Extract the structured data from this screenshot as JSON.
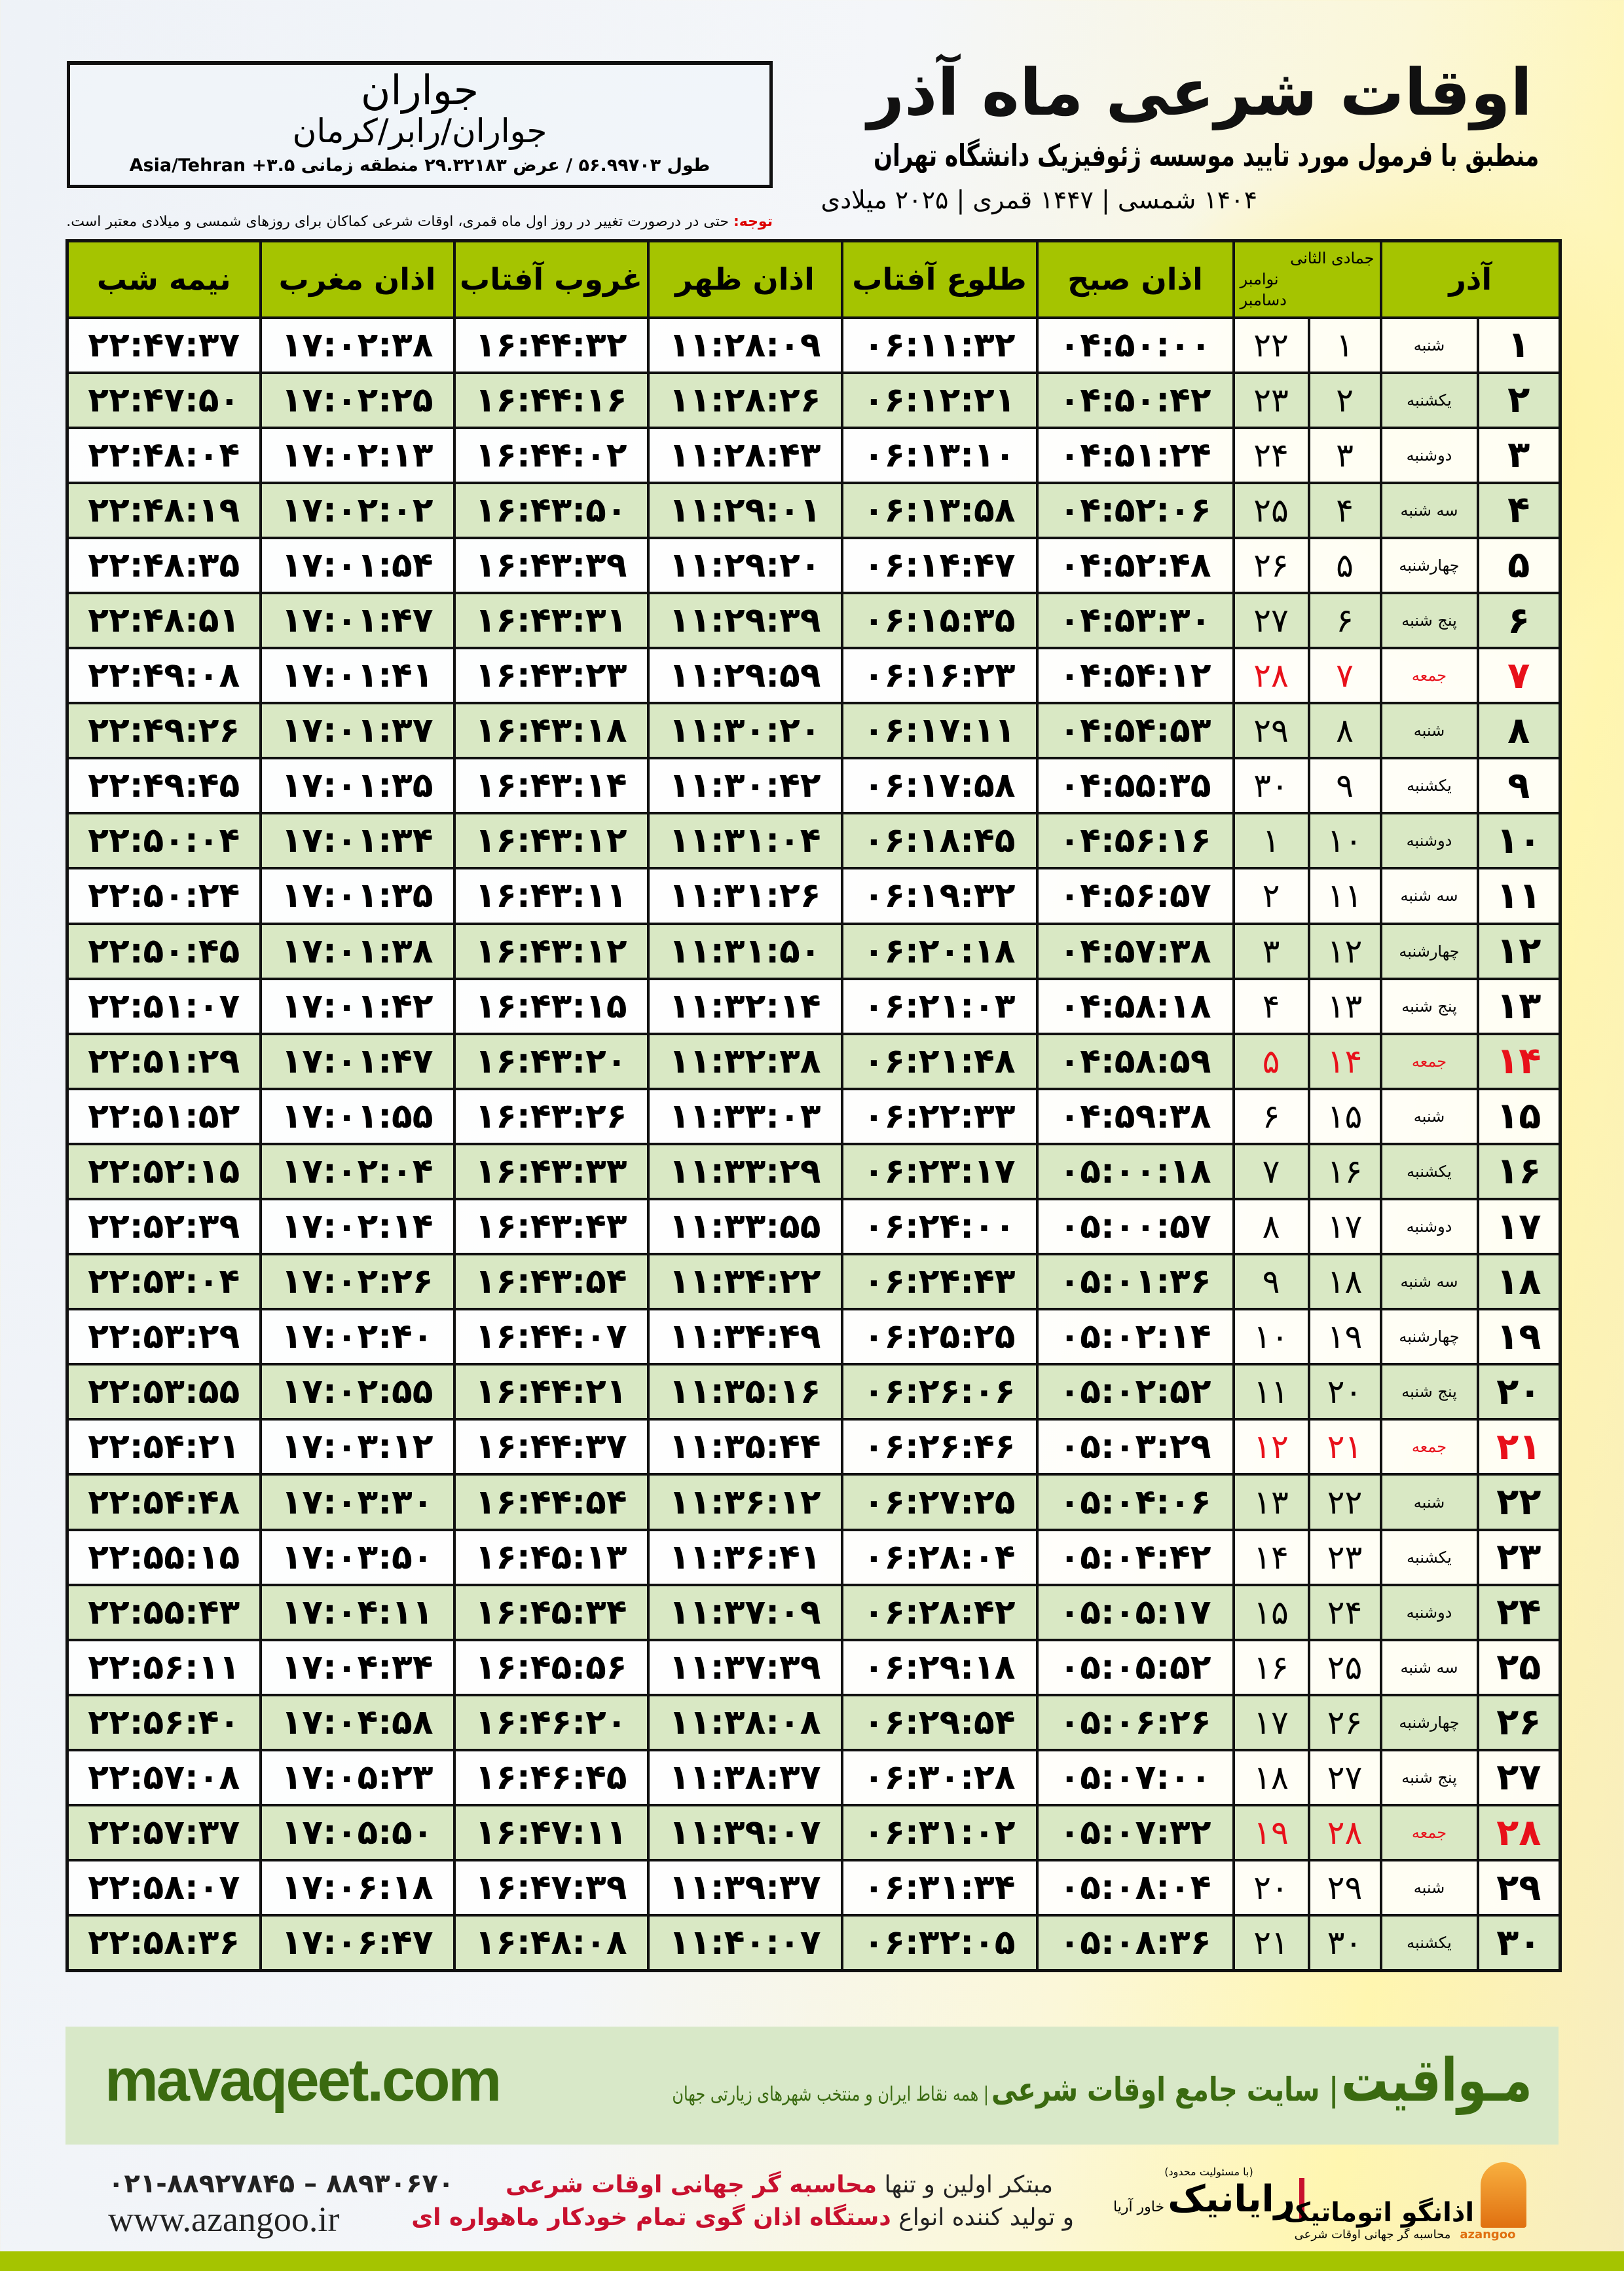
{
  "header": {
    "title": "اوقات شرعی ماه آذر",
    "subtitle": "منطبق با فرمول مورد تایید موسسه ژئوفیزیک دانشگاه تهران",
    "dates": "۱۴۰۴ شمسی | ۱۴۴۷ قمری | ۲۰۲۵ میلادی",
    "note_label": "توجه:",
    "note": " حتی در درصورت تغییر در روز اول ماه قمری، اوقات شرعی کماکان برای روزهای شمسی و میلادی معتبر است."
  },
  "location": {
    "city": "جواران",
    "region": "جواران/رابر/کرمان",
    "coords": "طول ۵۶.۹۹۷۰۳ / عرض ۲۹.۳۲۱۸۳ منطقه زمانی ۳.۵+ Asia/Tehran"
  },
  "columns": {
    "azar": "آذر",
    "jumada": "جمادی الثانی",
    "nov": "نوامبر",
    "dec": "دسامبر",
    "sobh": "اذان صبح",
    "tolu": "طلوع آفتاب",
    "zohr": "اذان ظهر",
    "ghorub": "غروب آفتاب",
    "maghrib": "اذان مغرب",
    "nimeh": "نیمه شب"
  },
  "colors": {
    "header_green": "#a5c400",
    "row_alt": "#d9e8c4",
    "friday": "#e8101a"
  },
  "rows": [
    [
      "۱",
      "شنبه",
      "۱",
      "۲۲",
      "۰۴:۵۰:۰۰",
      "۰۶:۱۱:۳۲",
      "۱۱:۲۸:۰۹",
      "۱۶:۴۴:۳۲",
      "۱۷:۰۲:۳۸",
      "۲۲:۴۷:۳۷"
    ],
    [
      "۲",
      "یکشنبه",
      "۲",
      "۲۳",
      "۰۴:۵۰:۴۲",
      "۰۶:۱۲:۲۱",
      "۱۱:۲۸:۲۶",
      "۱۶:۴۴:۱۶",
      "۱۷:۰۲:۲۵",
      "۲۲:۴۷:۵۰"
    ],
    [
      "۳",
      "دوشنبه",
      "۳",
      "۲۴",
      "۰۴:۵۱:۲۴",
      "۰۶:۱۳:۱۰",
      "۱۱:۲۸:۴۳",
      "۱۶:۴۴:۰۲",
      "۱۷:۰۲:۱۳",
      "۲۲:۴۸:۰۴"
    ],
    [
      "۴",
      "سه شنبه",
      "۴",
      "۲۵",
      "۰۴:۵۲:۰۶",
      "۰۶:۱۳:۵۸",
      "۱۱:۲۹:۰۱",
      "۱۶:۴۳:۵۰",
      "۱۷:۰۲:۰۲",
      "۲۲:۴۸:۱۹"
    ],
    [
      "۵",
      "چهارشنبه",
      "۵",
      "۲۶",
      "۰۴:۵۲:۴۸",
      "۰۶:۱۴:۴۷",
      "۱۱:۲۹:۲۰",
      "۱۶:۴۳:۳۹",
      "۱۷:۰۱:۵۴",
      "۲۲:۴۸:۳۵"
    ],
    [
      "۶",
      "پنج شنبه",
      "۶",
      "۲۷",
      "۰۴:۵۳:۳۰",
      "۰۶:۱۵:۳۵",
      "۱۱:۲۹:۳۹",
      "۱۶:۴۳:۳۱",
      "۱۷:۰۱:۴۷",
      "۲۲:۴۸:۵۱"
    ],
    [
      "۷",
      "جمعه",
      "۷",
      "۲۸",
      "۰۴:۵۴:۱۲",
      "۰۶:۱۶:۲۳",
      "۱۱:۲۹:۵۹",
      "۱۶:۴۳:۲۳",
      "۱۷:۰۱:۴۱",
      "۲۲:۴۹:۰۸"
    ],
    [
      "۸",
      "شنبه",
      "۸",
      "۲۹",
      "۰۴:۵۴:۵۳",
      "۰۶:۱۷:۱۱",
      "۱۱:۳۰:۲۰",
      "۱۶:۴۳:۱۸",
      "۱۷:۰۱:۳۷",
      "۲۲:۴۹:۲۶"
    ],
    [
      "۹",
      "یکشنبه",
      "۹",
      "۳۰",
      "۰۴:۵۵:۳۵",
      "۰۶:۱۷:۵۸",
      "۱۱:۳۰:۴۲",
      "۱۶:۴۳:۱۴",
      "۱۷:۰۱:۳۵",
      "۲۲:۴۹:۴۵"
    ],
    [
      "۱۰",
      "دوشنبه",
      "۱۰",
      "۱",
      "۰۴:۵۶:۱۶",
      "۰۶:۱۸:۴۵",
      "۱۱:۳۱:۰۴",
      "۱۶:۴۳:۱۲",
      "۱۷:۰۱:۳۴",
      "۲۲:۵۰:۰۴"
    ],
    [
      "۱۱",
      "سه شنبه",
      "۱۱",
      "۲",
      "۰۴:۵۶:۵۷",
      "۰۶:۱۹:۳۲",
      "۱۱:۳۱:۲۶",
      "۱۶:۴۳:۱۱",
      "۱۷:۰۱:۳۵",
      "۲۲:۵۰:۲۴"
    ],
    [
      "۱۲",
      "چهارشنبه",
      "۱۲",
      "۳",
      "۰۴:۵۷:۳۸",
      "۰۶:۲۰:۱۸",
      "۱۱:۳۱:۵۰",
      "۱۶:۴۳:۱۲",
      "۱۷:۰۱:۳۸",
      "۲۲:۵۰:۴۵"
    ],
    [
      "۱۳",
      "پنج شنبه",
      "۱۳",
      "۴",
      "۰۴:۵۸:۱۸",
      "۰۶:۲۱:۰۳",
      "۱۱:۳۲:۱۴",
      "۱۶:۴۳:۱۵",
      "۱۷:۰۱:۴۲",
      "۲۲:۵۱:۰۷"
    ],
    [
      "۱۴",
      "جمعه",
      "۱۴",
      "۵",
      "۰۴:۵۸:۵۹",
      "۰۶:۲۱:۴۸",
      "۱۱:۳۲:۳۸",
      "۱۶:۴۳:۲۰",
      "۱۷:۰۱:۴۷",
      "۲۲:۵۱:۲۹"
    ],
    [
      "۱۵",
      "شنبه",
      "۱۵",
      "۶",
      "۰۴:۵۹:۳۸",
      "۰۶:۲۲:۳۳",
      "۱۱:۳۳:۰۳",
      "۱۶:۴۳:۲۶",
      "۱۷:۰۱:۵۵",
      "۲۲:۵۱:۵۲"
    ],
    [
      "۱۶",
      "یکشنبه",
      "۱۶",
      "۷",
      "۰۵:۰۰:۱۸",
      "۰۶:۲۳:۱۷",
      "۱۱:۳۳:۲۹",
      "۱۶:۴۳:۳۳",
      "۱۷:۰۲:۰۴",
      "۲۲:۵۲:۱۵"
    ],
    [
      "۱۷",
      "دوشنبه",
      "۱۷",
      "۸",
      "۰۵:۰۰:۵۷",
      "۰۶:۲۴:۰۰",
      "۱۱:۳۳:۵۵",
      "۱۶:۴۳:۴۳",
      "۱۷:۰۲:۱۴",
      "۲۲:۵۲:۳۹"
    ],
    [
      "۱۸",
      "سه شنبه",
      "۱۸",
      "۹",
      "۰۵:۰۱:۳۶",
      "۰۶:۲۴:۴۳",
      "۱۱:۳۴:۲۲",
      "۱۶:۴۳:۵۴",
      "۱۷:۰۲:۲۶",
      "۲۲:۵۳:۰۴"
    ],
    [
      "۱۹",
      "چهارشنبه",
      "۱۹",
      "۱۰",
      "۰۵:۰۲:۱۴",
      "۰۶:۲۵:۲۵",
      "۱۱:۳۴:۴۹",
      "۱۶:۴۴:۰۷",
      "۱۷:۰۲:۴۰",
      "۲۲:۵۳:۲۹"
    ],
    [
      "۲۰",
      "پنج شنبه",
      "۲۰",
      "۱۱",
      "۰۵:۰۲:۵۲",
      "۰۶:۲۶:۰۶",
      "۱۱:۳۵:۱۶",
      "۱۶:۴۴:۲۱",
      "۱۷:۰۲:۵۵",
      "۲۲:۵۳:۵۵"
    ],
    [
      "۲۱",
      "جمعه",
      "۲۱",
      "۱۲",
      "۰۵:۰۳:۲۹",
      "۰۶:۲۶:۴۶",
      "۱۱:۳۵:۴۴",
      "۱۶:۴۴:۳۷",
      "۱۷:۰۳:۱۲",
      "۲۲:۵۴:۲۱"
    ],
    [
      "۲۲",
      "شنبه",
      "۲۲",
      "۱۳",
      "۰۵:۰۴:۰۶",
      "۰۶:۲۷:۲۵",
      "۱۱:۳۶:۱۲",
      "۱۶:۴۴:۵۴",
      "۱۷:۰۳:۳۰",
      "۲۲:۵۴:۴۸"
    ],
    [
      "۲۳",
      "یکشنبه",
      "۲۳",
      "۱۴",
      "۰۵:۰۴:۴۲",
      "۰۶:۲۸:۰۴",
      "۱۱:۳۶:۴۱",
      "۱۶:۴۵:۱۳",
      "۱۷:۰۳:۵۰",
      "۲۲:۵۵:۱۵"
    ],
    [
      "۲۴",
      "دوشنبه",
      "۲۴",
      "۱۵",
      "۰۵:۰۵:۱۷",
      "۰۶:۲۸:۴۲",
      "۱۱:۳۷:۰۹",
      "۱۶:۴۵:۳۴",
      "۱۷:۰۴:۱۱",
      "۲۲:۵۵:۴۳"
    ],
    [
      "۲۵",
      "سه شنبه",
      "۲۵",
      "۱۶",
      "۰۵:۰۵:۵۲",
      "۰۶:۲۹:۱۸",
      "۱۱:۳۷:۳۹",
      "۱۶:۴۵:۵۶",
      "۱۷:۰۴:۳۴",
      "۲۲:۵۶:۱۱"
    ],
    [
      "۲۶",
      "چهارشنبه",
      "۲۶",
      "۱۷",
      "۰۵:۰۶:۲۶",
      "۰۶:۲۹:۵۴",
      "۱۱:۳۸:۰۸",
      "۱۶:۴۶:۲۰",
      "۱۷:۰۴:۵۸",
      "۲۲:۵۶:۴۰"
    ],
    [
      "۲۷",
      "پنج شنبه",
      "۲۷",
      "۱۸",
      "۰۵:۰۷:۰۰",
      "۰۶:۳۰:۲۸",
      "۱۱:۳۸:۳۷",
      "۱۶:۴۶:۴۵",
      "۱۷:۰۵:۲۳",
      "۲۲:۵۷:۰۸"
    ],
    [
      "۲۸",
      "جمعه",
      "۲۸",
      "۱۹",
      "۰۵:۰۷:۳۲",
      "۰۶:۳۱:۰۲",
      "۱۱:۳۹:۰۷",
      "۱۶:۴۷:۱۱",
      "۱۷:۰۵:۵۰",
      "۲۲:۵۷:۳۷"
    ],
    [
      "۲۹",
      "شنبه",
      "۲۹",
      "۲۰",
      "۰۵:۰۸:۰۴",
      "۰۶:۳۱:۳۴",
      "۱۱:۳۹:۳۷",
      "۱۶:۴۷:۳۹",
      "۱۷:۰۶:۱۸",
      "۲۲:۵۸:۰۷"
    ],
    [
      "۳۰",
      "یکشنبه",
      "۳۰",
      "۲۱",
      "۰۵:۰۸:۳۶",
      "۰۶:۳۲:۰۵",
      "۱۱:۴۰:۰۷",
      "۱۶:۴۸:۰۸",
      "۱۷:۰۶:۴۷",
      "۲۲:۵۸:۳۶"
    ]
  ],
  "footer": {
    "site": "mavaqeet.com",
    "brand": "مـواقیت",
    "tagline": "| سایت جامع اوقات شرعی",
    "tagline2": "| همه نقاط ایران و منتخب شهرهای زیارتی جهان",
    "phone": "۰۲۱-۸۸۹۲۷۸۴۵ – ۸۸۹۳۰۶۷۰",
    "web": "www.azangoo.ir",
    "promo1a": "مبتکر اولین و تنها ",
    "promo1b": "محاسبه گر جهانی اوقات شرعی",
    "promo2a": "و تولید کننده انواع ",
    "promo2b": "دستگاه اذان گوی تمام خودکار ماهواره ای",
    "rayanik": "رایانیک",
    "rayanik_sub": "خاور آریا",
    "rayanik_ltd": "(با مسئولیت محدود)",
    "azangoo": "اذانگو اتوماتیک",
    "azangoo_en": "azangoo",
    "azangoo_sub": "محاسبه گر جهانی اوقات شرعی"
  }
}
